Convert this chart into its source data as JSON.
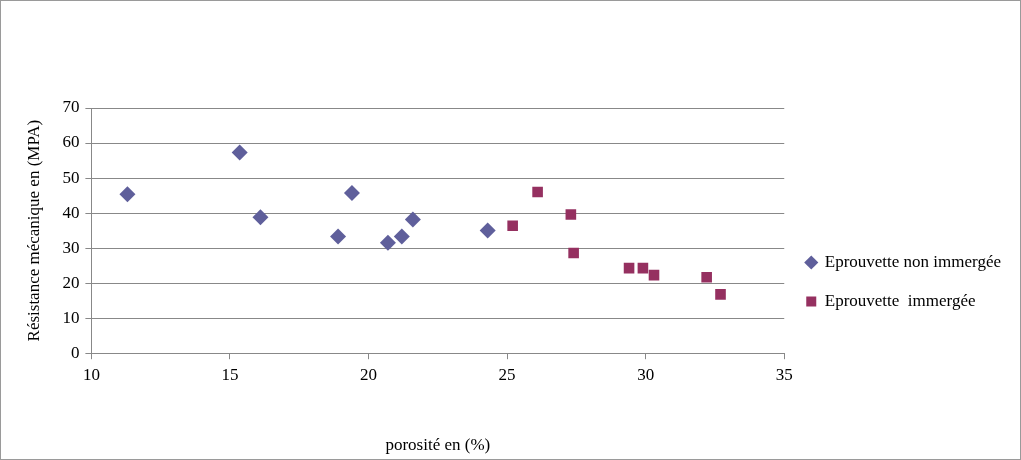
{
  "chart_data": {
    "type": "scatter",
    "xlabel": "porosité en (%)",
    "ylabel": "Résistance mécanique en (MPA)",
    "xlim": [
      10,
      35
    ],
    "xticks": [
      10,
      15,
      20,
      25,
      30,
      35
    ],
    "ylim": [
      0,
      70
    ],
    "yticks": [
      0,
      10,
      20,
      30,
      40,
      50,
      60,
      70
    ],
    "grid": "y",
    "legend": "right",
    "series": [
      {
        "name": "Eprouvette non immergée",
        "color": "#5f5f9b",
        "marker": "diamond",
        "x": [
          11.3,
          15.35,
          16.1,
          18.9,
          19.4,
          20.7,
          21.2,
          21.6,
          24.3
        ],
        "values": [
          45.4,
          57.3,
          38.8,
          33.3,
          45.7,
          31.5,
          33.3,
          38.2,
          35.0
        ]
      },
      {
        "name": "Eprouvette  immergée",
        "color": "#953060",
        "marker": "square",
        "x": [
          25.2,
          26.1,
          27.3,
          27.4,
          29.4,
          29.9,
          30.3,
          32.2,
          32.7
        ],
        "values": [
          36.4,
          46.0,
          39.6,
          28.6,
          24.3,
          24.3,
          22.3,
          21.7,
          16.8
        ]
      }
    ]
  }
}
